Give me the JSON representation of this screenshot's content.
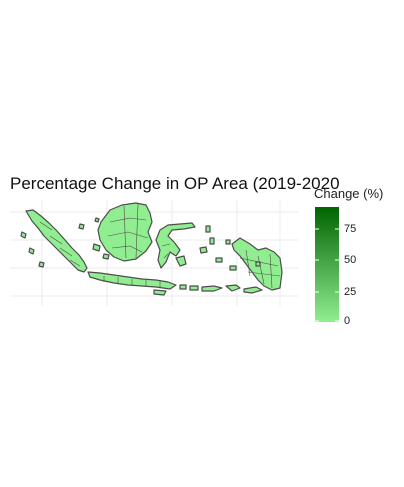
{
  "figure": {
    "title": "Percentage Change in OP Area (2019-2020"
  },
  "legend": {
    "title": "Change (%)",
    "ticks": [
      "75",
      "50",
      "25",
      "0"
    ],
    "color_low": "#90ee90",
    "color_high": "#006400"
  },
  "map": {
    "region_fill": "#90ee90",
    "region_stroke": "#4d4d4d",
    "grid_color": "#ebebeb"
  }
}
